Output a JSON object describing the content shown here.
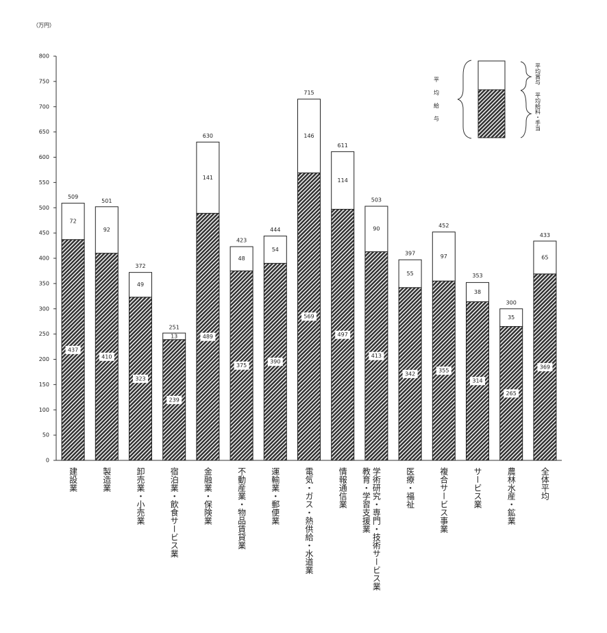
{
  "chart_data": {
    "type": "stacked_bar",
    "unit_label": "（万円）",
    "categories": [
      "建設業",
      "製造業",
      "卸売業・小売業",
      "宿泊業・飲食サービス業",
      "金融業・保険業",
      "不動産業・物品賃貸業",
      "運輸業・郵便業",
      "電気・ガス・熱供給・水道業",
      "情報通信業",
      "学術研究・専門・技術サービス業\n教育・学習支援業",
      "医療・福祉",
      "複合サービス事業",
      "サービス業",
      "農林水産・鉱業",
      "全体平均"
    ],
    "series": [
      {
        "name": "平均給料・手当",
        "color": "#333333",
        "values": [
          437,
          410,
          323,
          239,
          489,
          375,
          390,
          569,
          497,
          413,
          342,
          355,
          314,
          265,
          369
        ]
      },
      {
        "name": "平均賞与",
        "color": "#ffffff",
        "values": [
          72,
          92,
          49,
          13,
          141,
          48,
          54,
          146,
          114,
          90,
          55,
          97,
          38,
          35,
          65
        ]
      }
    ],
    "totals": [
      509,
      501,
      372,
      251,
      630,
      423,
      444,
      715,
      611,
      503,
      397,
      452,
      353,
      300,
      433
    ],
    "legend_group_label": "平均給与",
    "ylim": [
      0,
      800
    ],
    "yticks": [
      0,
      50,
      100,
      150,
      200,
      250,
      300,
      350,
      400,
      450,
      500,
      550,
      600,
      650,
      700,
      750,
      800
    ]
  }
}
